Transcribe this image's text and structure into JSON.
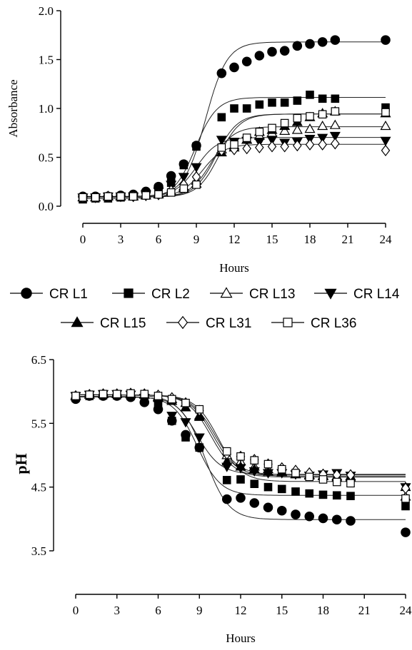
{
  "chart_data": [
    {
      "type": "scatter",
      "title": "",
      "xlabel": "Hours",
      "ylabel": "Absorbance",
      "xlim": [
        0,
        24
      ],
      "ylim": [
        0,
        2.0
      ],
      "xticks": [
        0,
        3,
        6,
        9,
        12,
        15,
        18,
        21,
        24
      ],
      "yticks": [
        0.0,
        0.5,
        1.0,
        1.5,
        2.0
      ],
      "ytick_labels": [
        "0.0",
        "0.5",
        "1.0",
        "1.5",
        "2.0"
      ],
      "grid": false,
      "legend_position": "bottom",
      "x": [
        0,
        1,
        2,
        3,
        4,
        5,
        6,
        7,
        8,
        9,
        11,
        12,
        13,
        14,
        15,
        16,
        17,
        18,
        19,
        20,
        24
      ],
      "series": [
        {
          "name": "CR L1",
          "marker": "circle",
          "values": [
            0.1,
            0.1,
            0.1,
            0.11,
            0.12,
            0.15,
            0.2,
            0.31,
            0.43,
            0.62,
            1.36,
            1.42,
            1.48,
            1.54,
            1.58,
            1.59,
            1.64,
            1.66,
            1.68,
            1.7,
            1.7
          ]
        },
        {
          "name": "CR L2",
          "marker": "square",
          "values": [
            0.07,
            0.08,
            0.08,
            0.09,
            0.1,
            0.11,
            0.14,
            0.24,
            0.42,
            0.61,
            0.91,
            1.0,
            1.0,
            1.04,
            1.06,
            1.06,
            1.08,
            1.14,
            1.1,
            1.1,
            1.01
          ]
        },
        {
          "name": "CR L13",
          "marker": "triangle-up-open",
          "values": [
            0.09,
            0.09,
            0.1,
            0.1,
            0.1,
            0.11,
            0.12,
            0.15,
            0.2,
            0.26,
            0.58,
            0.62,
            0.68,
            0.72,
            0.75,
            0.77,
            0.78,
            0.79,
            0.82,
            0.83,
            0.82
          ]
        },
        {
          "name": "CR L14",
          "marker": "triangle-down",
          "values": [
            0.09,
            0.09,
            0.1,
            0.1,
            0.1,
            0.12,
            0.15,
            0.22,
            0.3,
            0.4,
            0.68,
            0.66,
            0.67,
            0.66,
            0.68,
            0.65,
            0.66,
            0.69,
            0.7,
            0.72,
            0.67
          ]
        },
        {
          "name": "CR L15",
          "marker": "triangle-up",
          "values": [
            0.09,
            0.09,
            0.1,
            0.1,
            0.1,
            0.11,
            0.12,
            0.15,
            0.18,
            0.23,
            0.55,
            0.6,
            0.68,
            0.76,
            0.78,
            0.82,
            0.86,
            0.91,
            0.95,
            0.97,
            0.95
          ]
        },
        {
          "name": "CR L31",
          "marker": "diamond-open",
          "values": [
            0.09,
            0.09,
            0.1,
            0.1,
            0.1,
            0.11,
            0.12,
            0.16,
            0.22,
            0.3,
            0.57,
            0.58,
            0.59,
            0.6,
            0.61,
            0.61,
            0.62,
            0.63,
            0.63,
            0.64,
            0.57
          ]
        },
        {
          "name": "CR L36",
          "marker": "square-open",
          "values": [
            0.09,
            0.09,
            0.1,
            0.1,
            0.1,
            0.11,
            0.12,
            0.14,
            0.18,
            0.22,
            0.6,
            0.63,
            0.7,
            0.76,
            0.8,
            0.85,
            0.9,
            0.92,
            0.94,
            0.97,
            0.96
          ]
        }
      ]
    },
    {
      "type": "scatter",
      "title": "",
      "xlabel": "Hours",
      "ylabel": "pH",
      "xlim": [
        0,
        24
      ],
      "ylim": [
        3.5,
        6.5
      ],
      "xticks": [
        0,
        3,
        6,
        9,
        12,
        15,
        18,
        21,
        24
      ],
      "yticks": [
        3.5,
        4.5,
        5.5,
        6.5
      ],
      "ytick_labels": [
        "3.5",
        "4.5",
        "5.5",
        "6.5"
      ],
      "grid": false,
      "x": [
        0,
        1,
        2,
        3,
        4,
        5,
        6,
        7,
        8,
        9,
        11,
        12,
        13,
        14,
        15,
        16,
        17,
        18,
        19,
        20,
        24
      ],
      "series": [
        {
          "name": "CR L1",
          "marker": "circle",
          "values": [
            5.88,
            5.93,
            5.93,
            5.93,
            5.91,
            5.83,
            5.72,
            5.54,
            5.32,
            5.12,
            4.31,
            4.33,
            4.25,
            4.18,
            4.13,
            4.07,
            4.04,
            4.01,
            3.99,
            3.97,
            3.79
          ]
        },
        {
          "name": "CR L2",
          "marker": "square",
          "values": [
            5.9,
            5.93,
            5.94,
            5.94,
            5.93,
            5.88,
            5.76,
            5.54,
            5.28,
            5.12,
            4.61,
            4.62,
            4.55,
            4.5,
            4.47,
            4.43,
            4.4,
            4.38,
            4.37,
            4.36,
            4.2
          ]
        },
        {
          "name": "CR L13",
          "marker": "triangle-up-open",
          "values": [
            5.93,
            5.95,
            5.96,
            5.96,
            5.96,
            5.95,
            5.92,
            5.88,
            5.82,
            5.62,
            5.0,
            4.9,
            4.82,
            4.78,
            4.74,
            4.7,
            4.69,
            4.68,
            4.67,
            4.67,
            4.35
          ]
        },
        {
          "name": "CR L14",
          "marker": "triangle-down",
          "values": [
            5.93,
            5.95,
            5.96,
            5.96,
            5.95,
            5.9,
            5.8,
            5.62,
            5.52,
            5.28,
            4.82,
            4.8,
            4.75,
            4.72,
            4.72,
            4.7,
            4.68,
            4.7,
            4.72,
            4.68,
            4.5
          ]
        },
        {
          "name": "CR L15",
          "marker": "triangle-up",
          "values": [
            5.93,
            5.95,
            5.96,
            5.96,
            5.96,
            5.95,
            5.9,
            5.85,
            5.75,
            5.6,
            4.9,
            4.82,
            4.78,
            4.74,
            4.73,
            4.7,
            4.68,
            4.67,
            4.65,
            4.65,
            4.5
          ]
        },
        {
          "name": "CR L31",
          "marker": "diamond-open",
          "values": [
            5.93,
            5.95,
            5.96,
            5.96,
            5.97,
            5.96,
            5.94,
            5.9,
            5.82,
            5.7,
            5.02,
            4.98,
            4.93,
            4.86,
            4.8,
            4.76,
            4.72,
            4.7,
            4.69,
            4.69,
            4.48
          ]
        },
        {
          "name": "CR L36",
          "marker": "square-open",
          "values": [
            5.93,
            5.95,
            5.96,
            5.96,
            5.97,
            5.96,
            5.93,
            5.88,
            5.82,
            5.72,
            5.06,
            4.98,
            4.92,
            4.86,
            4.78,
            4.72,
            4.66,
            4.62,
            4.58,
            4.56,
            4.32
          ]
        }
      ]
    }
  ]
}
